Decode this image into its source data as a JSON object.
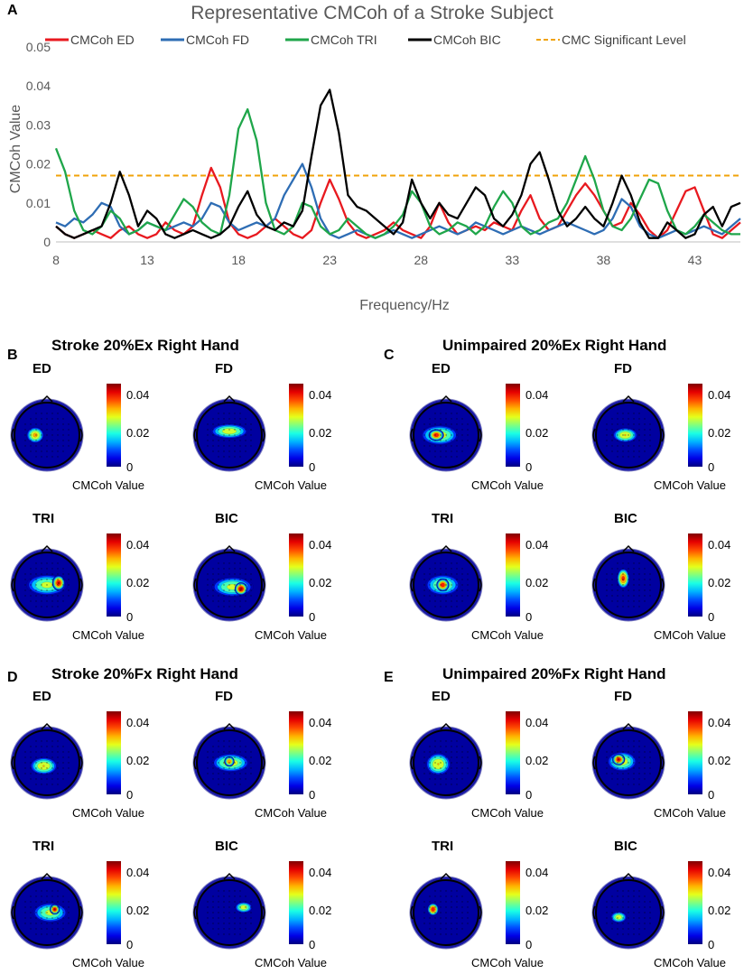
{
  "chart_data": [
    {
      "type": "line",
      "panel": "A",
      "title": "Representative CMCoh of a Stroke Subject",
      "xlabel": "Frequency/Hz",
      "ylabel": "CMCoh Value",
      "xlim": [
        8,
        45.5
      ],
      "ylim": [
        0,
        0.05
      ],
      "x_ticks": [
        8,
        13,
        18,
        23,
        28,
        33,
        38,
        43
      ],
      "y_ticks": [
        "0",
        "0.01",
        "0.02",
        "0.03",
        "0.04",
        "0.05"
      ],
      "grid": false,
      "legend_position": "top",
      "threshold": {
        "name": "CMC Significant Level",
        "value": 0.017,
        "color": "#f0a30a"
      },
      "series": [
        {
          "name": "CMCoh ED",
          "color": "#e8191f",
          "x": [
            8,
            8.5,
            9,
            9.5,
            10,
            10.5,
            11,
            11.5,
            12,
            12.5,
            13,
            13.5,
            14,
            14.5,
            15,
            15.5,
            16,
            16.5,
            17,
            17.5,
            18,
            18.5,
            19,
            19.5,
            20,
            20.5,
            21,
            21.5,
            22,
            22.5,
            23,
            23.5,
            24,
            24.5,
            25,
            25.5,
            26,
            26.5,
            27,
            27.5,
            28,
            28.5,
            29,
            29.5,
            30,
            30.5,
            31,
            31.5,
            32,
            32.5,
            33,
            33.5,
            34,
            34.5,
            35,
            35.5,
            36,
            36.5,
            37,
            37.5,
            38,
            38.5,
            39,
            39.5,
            40,
            40.5,
            41,
            41.5,
            42,
            42.5,
            43,
            43.5,
            44,
            44.5,
            45,
            45.5
          ],
          "values": [
            0.004,
            0.002,
            0.001,
            0.002,
            0.003,
            0.002,
            0.001,
            0.003,
            0.004,
            0.002,
            0.001,
            0.002,
            0.005,
            0.003,
            0.002,
            0.004,
            0.012,
            0.019,
            0.014,
            0.005,
            0.002,
            0.001,
            0.002,
            0.004,
            0.006,
            0.004,
            0.002,
            0.001,
            0.003,
            0.01,
            0.016,
            0.011,
            0.005,
            0.002,
            0.001,
            0.002,
            0.003,
            0.005,
            0.003,
            0.002,
            0.001,
            0.004,
            0.01,
            0.005,
            0.002,
            0.003,
            0.004,
            0.003,
            0.005,
            0.004,
            0.003,
            0.008,
            0.012,
            0.006,
            0.003,
            0.004,
            0.008,
            0.012,
            0.015,
            0.012,
            0.008,
            0.004,
            0.005,
            0.01,
            0.007,
            0.003,
            0.001,
            0.003,
            0.008,
            0.013,
            0.014,
            0.008,
            0.002,
            0.001,
            0.003,
            0.005
          ]
        },
        {
          "name": "CMCoh FD",
          "color": "#2e6db4",
          "x": [
            8,
            8.5,
            9,
            9.5,
            10,
            10.5,
            11,
            11.5,
            12,
            12.5,
            13,
            13.5,
            14,
            14.5,
            15,
            15.5,
            16,
            16.5,
            17,
            17.5,
            18,
            18.5,
            19,
            19.5,
            20,
            20.5,
            21,
            21.5,
            22,
            22.5,
            23,
            23.5,
            24,
            24.5,
            25,
            25.5,
            26,
            26.5,
            27,
            27.5,
            28,
            28.5,
            29,
            29.5,
            30,
            30.5,
            31,
            31.5,
            32,
            32.5,
            33,
            33.5,
            34,
            34.5,
            35,
            35.5,
            36,
            36.5,
            37,
            37.5,
            38,
            38.5,
            39,
            39.5,
            40,
            40.5,
            41,
            41.5,
            42,
            42.5,
            43,
            43.5,
            44,
            44.5,
            45,
            45.5
          ],
          "values": [
            0.005,
            0.004,
            0.006,
            0.005,
            0.007,
            0.01,
            0.009,
            0.004,
            0.002,
            0.003,
            0.005,
            0.004,
            0.003,
            0.004,
            0.005,
            0.004,
            0.006,
            0.01,
            0.009,
            0.005,
            0.003,
            0.004,
            0.005,
            0.004,
            0.006,
            0.012,
            0.016,
            0.02,
            0.014,
            0.006,
            0.002,
            0.001,
            0.002,
            0.003,
            0.002,
            0.001,
            0.002,
            0.003,
            0.002,
            0.001,
            0.002,
            0.003,
            0.004,
            0.003,
            0.002,
            0.003,
            0.005,
            0.004,
            0.003,
            0.002,
            0.003,
            0.004,
            0.003,
            0.002,
            0.003,
            0.004,
            0.005,
            0.004,
            0.003,
            0.002,
            0.003,
            0.006,
            0.011,
            0.009,
            0.004,
            0.002,
            0.001,
            0.002,
            0.003,
            0.002,
            0.003,
            0.004,
            0.003,
            0.002,
            0.004,
            0.006
          ]
        },
        {
          "name": "CMCoh TRI",
          "color": "#1fa64a",
          "x": [
            8,
            8.5,
            9,
            9.5,
            10,
            10.5,
            11,
            11.5,
            12,
            12.5,
            13,
            13.5,
            14,
            14.5,
            15,
            15.5,
            16,
            16.5,
            17,
            17.5,
            18,
            18.5,
            19,
            19.5,
            20,
            20.5,
            21,
            21.5,
            22,
            22.5,
            23,
            23.5,
            24,
            24.5,
            25,
            25.5,
            26,
            26.5,
            27,
            27.5,
            28,
            28.5,
            29,
            29.5,
            30,
            30.5,
            31,
            31.5,
            32,
            32.5,
            33,
            33.5,
            34,
            34.5,
            35,
            35.5,
            36,
            36.5,
            37,
            37.5,
            38,
            38.5,
            39,
            39.5,
            40,
            40.5,
            41,
            41.5,
            42,
            42.5,
            43,
            43.5,
            44,
            44.5,
            45,
            45.5
          ],
          "values": [
            0.024,
            0.018,
            0.008,
            0.003,
            0.002,
            0.004,
            0.008,
            0.006,
            0.002,
            0.003,
            0.005,
            0.004,
            0.003,
            0.007,
            0.011,
            0.009,
            0.005,
            0.003,
            0.002,
            0.012,
            0.029,
            0.034,
            0.026,
            0.01,
            0.003,
            0.002,
            0.004,
            0.01,
            0.009,
            0.004,
            0.002,
            0.003,
            0.006,
            0.004,
            0.002,
            0.001,
            0.002,
            0.004,
            0.007,
            0.013,
            0.01,
            0.004,
            0.002,
            0.003,
            0.005,
            0.004,
            0.002,
            0.004,
            0.009,
            0.013,
            0.01,
            0.004,
            0.002,
            0.003,
            0.005,
            0.006,
            0.01,
            0.016,
            0.022,
            0.016,
            0.008,
            0.004,
            0.003,
            0.006,
            0.011,
            0.016,
            0.015,
            0.008,
            0.003,
            0.002,
            0.004,
            0.007,
            0.005,
            0.003,
            0.002,
            0.002
          ]
        },
        {
          "name": "CMCoh BIC",
          "color": "#000000",
          "x": [
            8,
            8.5,
            9,
            9.5,
            10,
            10.5,
            11,
            11.5,
            12,
            12.5,
            13,
            13.5,
            14,
            14.5,
            15,
            15.5,
            16,
            16.5,
            17,
            17.5,
            18,
            18.5,
            19,
            19.5,
            20,
            20.5,
            21,
            21.5,
            22,
            22.5,
            23,
            23.5,
            24,
            24.5,
            25,
            25.5,
            26,
            26.5,
            27,
            27.5,
            28,
            28.5,
            29,
            29.5,
            30,
            30.5,
            31,
            31.5,
            32,
            32.5,
            33,
            33.5,
            34,
            34.5,
            35,
            35.5,
            36,
            36.5,
            37,
            37.5,
            38,
            38.5,
            39,
            39.5,
            40,
            40.5,
            41,
            41.5,
            42,
            42.5,
            43,
            43.5,
            44,
            44.5,
            45,
            45.5
          ],
          "values": [
            0.004,
            0.002,
            0.001,
            0.002,
            0.003,
            0.004,
            0.01,
            0.018,
            0.012,
            0.004,
            0.008,
            0.006,
            0.002,
            0.001,
            0.002,
            0.003,
            0.002,
            0.001,
            0.002,
            0.004,
            0.009,
            0.013,
            0.007,
            0.004,
            0.003,
            0.005,
            0.004,
            0.008,
            0.022,
            0.035,
            0.039,
            0.028,
            0.012,
            0.009,
            0.008,
            0.006,
            0.004,
            0.002,
            0.005,
            0.016,
            0.01,
            0.006,
            0.01,
            0.007,
            0.006,
            0.01,
            0.014,
            0.012,
            0.006,
            0.004,
            0.007,
            0.012,
            0.02,
            0.023,
            0.016,
            0.008,
            0.004,
            0.006,
            0.009,
            0.006,
            0.004,
            0.01,
            0.017,
            0.012,
            0.005,
            0.001,
            0.001,
            0.005,
            0.003,
            0.001,
            0.002,
            0.007,
            0.009,
            0.004,
            0.009,
            0.01
          ]
        }
      ]
    },
    {
      "type": "heatmap",
      "panel": "B",
      "title": "Stroke 20%Ex Right Hand",
      "colorbar": {
        "ticks": [
          "0.04",
          "0.02",
          "0"
        ],
        "label": "CMCoh Value",
        "range": [
          0,
          0.045
        ]
      },
      "maps": [
        {
          "label": "ED",
          "blobs": [
            {
              "x": 0.32,
              "y": 0.5,
              "rx": 0.14,
              "ry": 0.13,
              "peak": 0.034
            }
          ]
        },
        {
          "label": "FD",
          "blobs": [
            {
              "x": 0.5,
              "y": 0.44,
              "rx": 0.3,
              "ry": 0.12,
              "peak": 0.03
            }
          ]
        },
        {
          "label": "TRI",
          "blobs": [
            {
              "x": 0.5,
              "y": 0.5,
              "rx": 0.33,
              "ry": 0.17,
              "peak": 0.028
            },
            {
              "x": 0.68,
              "y": 0.47,
              "rx": 0.1,
              "ry": 0.12,
              "peak": 0.043
            }
          ]
        },
        {
          "label": "BIC",
          "blobs": [
            {
              "x": 0.55,
              "y": 0.53,
              "rx": 0.33,
              "ry": 0.16,
              "peak": 0.028
            },
            {
              "x": 0.68,
              "y": 0.56,
              "rx": 0.1,
              "ry": 0.1,
              "peak": 0.045
            }
          ]
        }
      ]
    },
    {
      "type": "heatmap",
      "panel": "C",
      "title": "Unimpaired 20%Ex Right Hand",
      "colorbar": {
        "ticks": [
          "0.04",
          "0.02",
          "0"
        ],
        "label": "CMCoh Value",
        "range": [
          0,
          0.045
        ]
      },
      "maps": [
        {
          "label": "ED",
          "blobs": [
            {
              "x": 0.4,
              "y": 0.5,
              "rx": 0.3,
              "ry": 0.16,
              "peak": 0.03
            },
            {
              "x": 0.35,
              "y": 0.5,
              "rx": 0.12,
              "ry": 0.09,
              "peak": 0.042
            }
          ]
        },
        {
          "label": "FD",
          "blobs": [
            {
              "x": 0.45,
              "y": 0.5,
              "rx": 0.2,
              "ry": 0.12,
              "peak": 0.032
            }
          ]
        },
        {
          "label": "TRI",
          "blobs": [
            {
              "x": 0.45,
              "y": 0.5,
              "rx": 0.28,
              "ry": 0.17,
              "peak": 0.028
            },
            {
              "x": 0.45,
              "y": 0.5,
              "rx": 0.1,
              "ry": 0.1,
              "peak": 0.042
            }
          ]
        },
        {
          "label": "BIC",
          "blobs": [
            {
              "x": 0.42,
              "y": 0.4,
              "rx": 0.1,
              "ry": 0.16,
              "peak": 0.04
            }
          ]
        }
      ]
    },
    {
      "type": "heatmap",
      "panel": "D",
      "title": "Stroke 20%Fx Right Hand",
      "colorbar": {
        "ticks": [
          "0.04",
          "0.02",
          "0"
        ],
        "label": "CMCoh Value",
        "range": [
          0,
          0.045
        ]
      },
      "maps": [
        {
          "label": "ED",
          "blobs": [
            {
              "x": 0.45,
              "y": 0.55,
              "rx": 0.22,
              "ry": 0.14,
              "peak": 0.032
            }
          ]
        },
        {
          "label": "FD",
          "blobs": [
            {
              "x": 0.52,
              "y": 0.5,
              "rx": 0.3,
              "ry": 0.15,
              "peak": 0.03
            },
            {
              "x": 0.5,
              "y": 0.48,
              "rx": 0.08,
              "ry": 0.08,
              "peak": 0.037
            }
          ]
        },
        {
          "label": "TRI",
          "blobs": [
            {
              "x": 0.55,
              "y": 0.5,
              "rx": 0.28,
              "ry": 0.16,
              "peak": 0.028
            },
            {
              "x": 0.62,
              "y": 0.45,
              "rx": 0.08,
              "ry": 0.08,
              "peak": 0.043
            }
          ]
        },
        {
          "label": "BIC",
          "blobs": [
            {
              "x": 0.72,
              "y": 0.42,
              "rx": 0.14,
              "ry": 0.09,
              "peak": 0.03
            }
          ]
        }
      ]
    },
    {
      "type": "heatmap",
      "panel": "E",
      "title": "Unimpaired 20%Fx Right Hand",
      "colorbar": {
        "ticks": [
          "0.04",
          "0.02",
          "0"
        ],
        "label": "CMCoh Value",
        "range": [
          0,
          0.045
        ]
      },
      "maps": [
        {
          "label": "ED",
          "blobs": [
            {
              "x": 0.38,
              "y": 0.52,
              "rx": 0.2,
              "ry": 0.18,
              "peak": 0.032
            }
          ]
        },
        {
          "label": "FD",
          "blobs": [
            {
              "x": 0.4,
              "y": 0.48,
              "rx": 0.24,
              "ry": 0.16,
              "peak": 0.03
            },
            {
              "x": 0.35,
              "y": 0.45,
              "rx": 0.1,
              "ry": 0.09,
              "peak": 0.043
            }
          ]
        },
        {
          "label": "TRI",
          "blobs": [
            {
              "x": 0.3,
              "y": 0.45,
              "rx": 0.09,
              "ry": 0.1,
              "peak": 0.042
            }
          ]
        },
        {
          "label": "BIC",
          "blobs": [
            {
              "x": 0.35,
              "y": 0.57,
              "rx": 0.13,
              "ry": 0.09,
              "peak": 0.03
            }
          ]
        }
      ]
    }
  ]
}
